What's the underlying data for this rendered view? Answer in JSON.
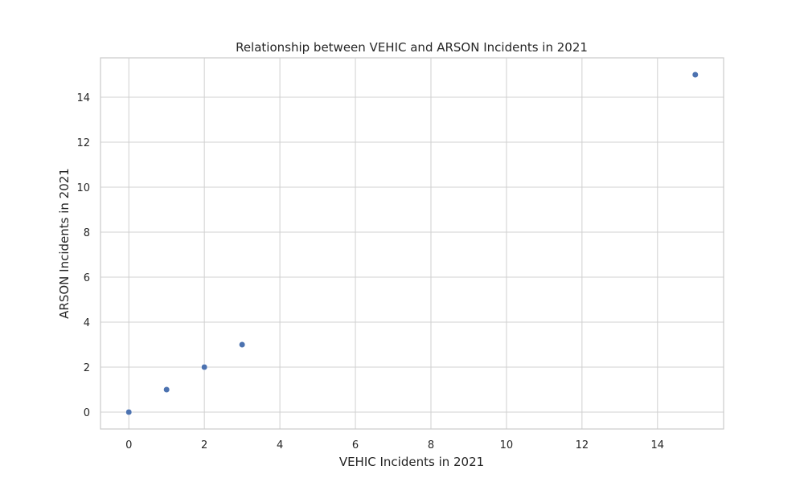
{
  "chart_data": {
    "type": "scatter",
    "title": "Relationship between VEHIC and ARSON Incidents in 2021",
    "xlabel": "VEHIC Incidents in 2021",
    "ylabel": "ARSON Incidents in 2021",
    "xlim": [
      -0.75,
      15.75
    ],
    "ylim": [
      -0.75,
      15.75
    ],
    "xticks": [
      0,
      2,
      4,
      6,
      8,
      10,
      12,
      14
    ],
    "yticks": [
      0,
      2,
      4,
      6,
      8,
      10,
      12,
      14
    ],
    "grid": true,
    "points": [
      {
        "x": 0,
        "y": 0
      },
      {
        "x": 1,
        "y": 1
      },
      {
        "x": 2,
        "y": 2
      },
      {
        "x": 3,
        "y": 3
      },
      {
        "x": 15,
        "y": 15
      }
    ],
    "colors": {
      "point": "#4c72b0",
      "grid": "#d0d0d0",
      "frame": "#cccccc"
    }
  }
}
